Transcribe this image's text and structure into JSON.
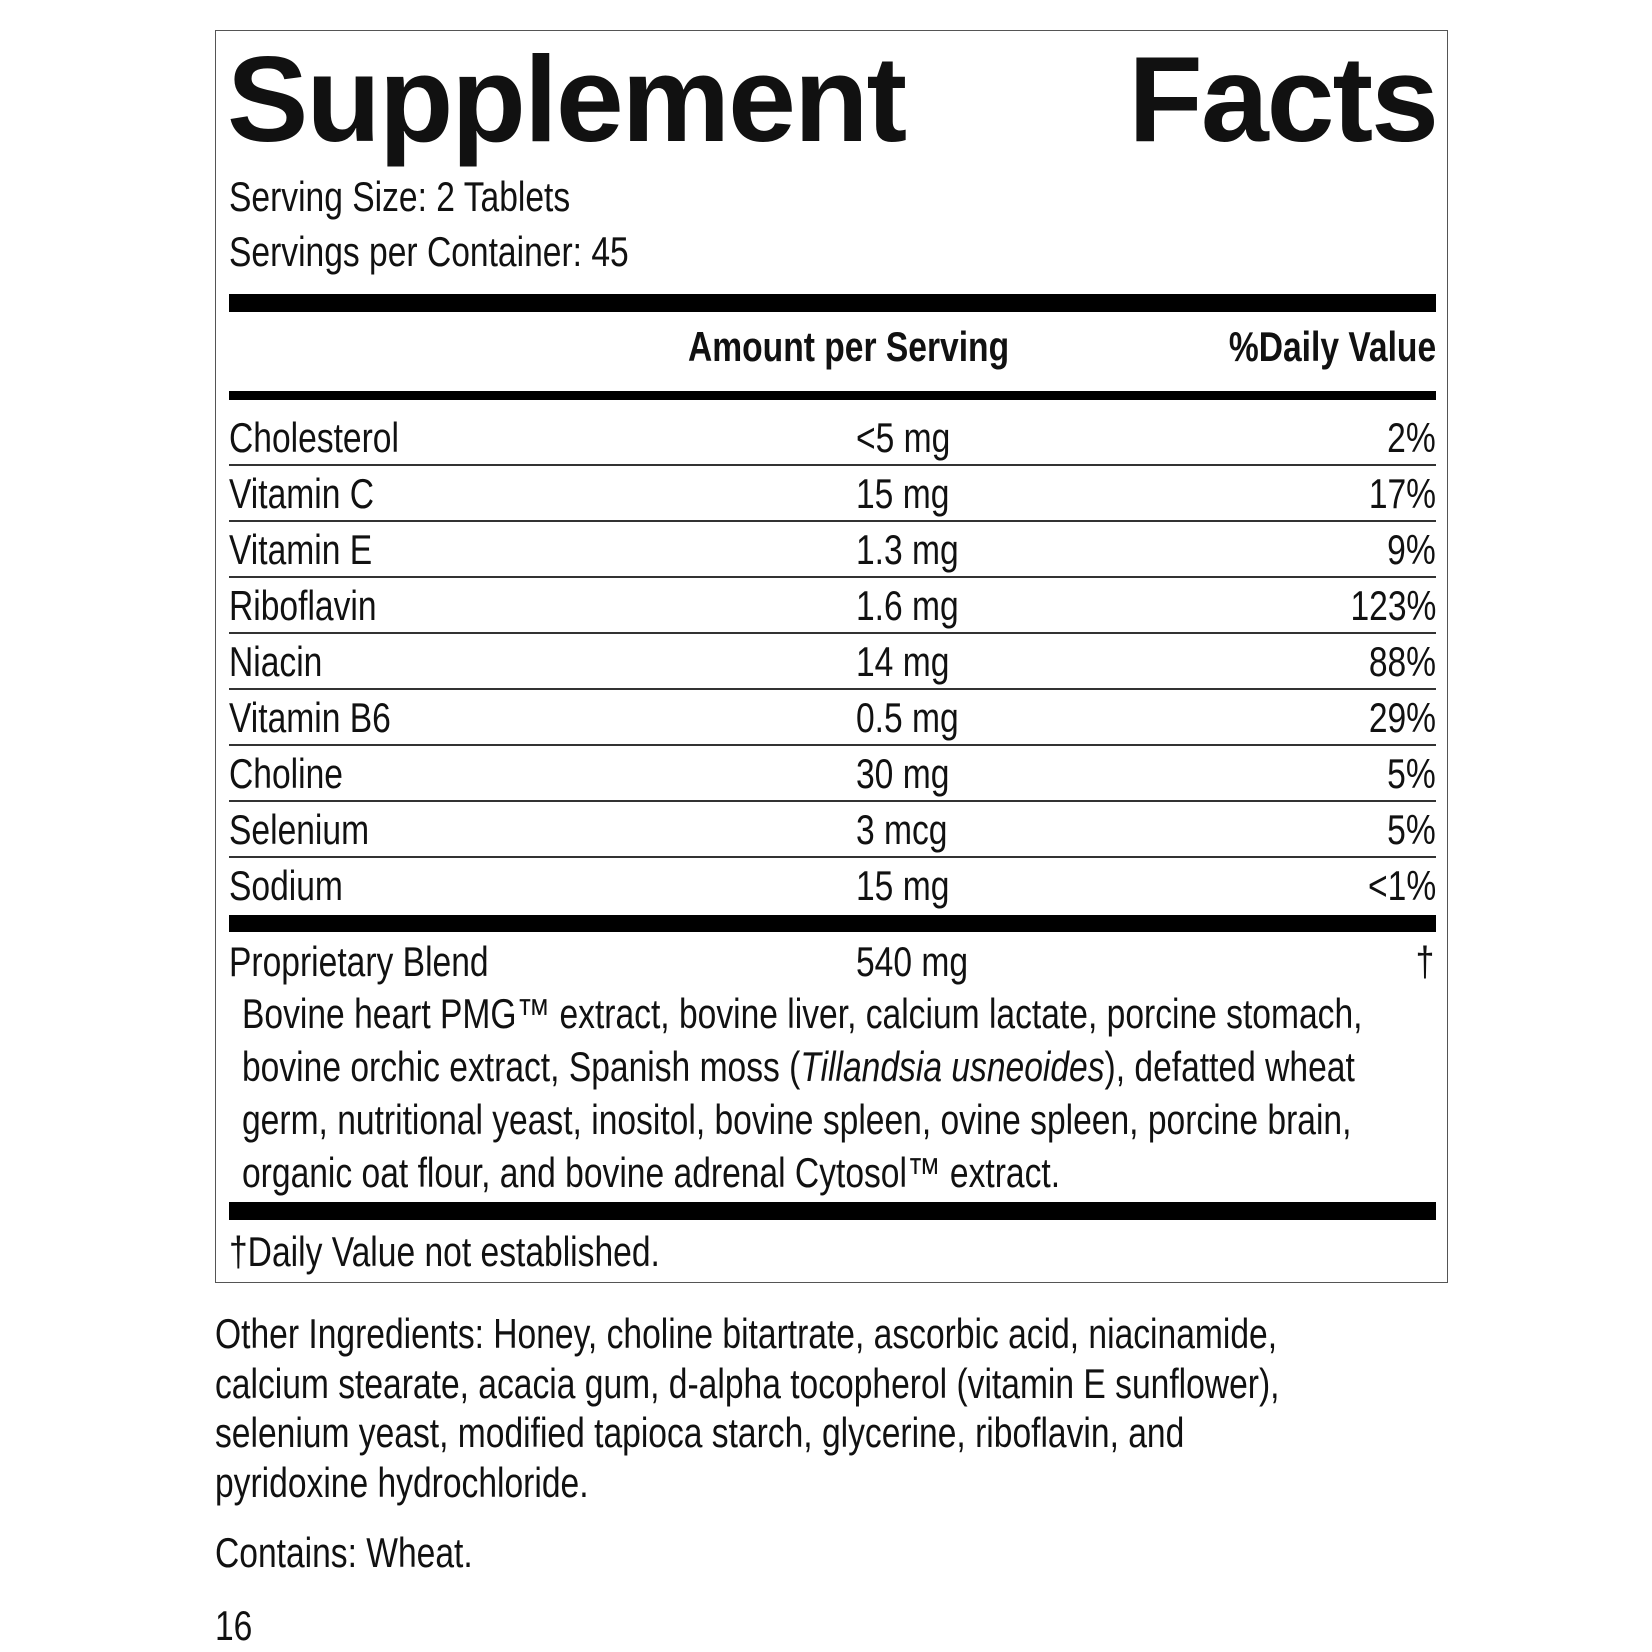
{
  "title": {
    "word1": "Supplement",
    "word2": "Facts"
  },
  "serving_size": "Serving Size: 2 Tablets",
  "servings_per_container": "Servings per Container: 45",
  "header": {
    "amount": "Amount per Serving",
    "dv": "%Daily Value"
  },
  "rows": [
    {
      "name": "Cholesterol",
      "amount": "<5 mg",
      "dv": "2%"
    },
    {
      "name": "Vitamin C",
      "amount": "15 mg",
      "dv": "17%"
    },
    {
      "name": "Vitamin E",
      "amount": "1.3 mg",
      "dv": "9%"
    },
    {
      "name": "Riboflavin",
      "amount": "1.6 mg",
      "dv": "123%"
    },
    {
      "name": "Niacin",
      "amount": "14 mg",
      "dv": "88%"
    },
    {
      "name": "Vitamin B6",
      "amount": "0.5 mg",
      "dv": "29%"
    },
    {
      "name": "Choline",
      "amount": "30 mg",
      "dv": "5%"
    },
    {
      "name": "Selenium",
      "amount": "3 mcg",
      "dv": "5%"
    },
    {
      "name": "Sodium",
      "amount": "15 mg",
      "dv": "<1%"
    }
  ],
  "blend": {
    "name": "Proprietary Blend",
    "amount": "540 mg",
    "dv": "†",
    "lines": [
      "Bovine heart PMG™ extract, bovine liver, calcium lactate, porcine stomach,",
      {
        "before": "bovine orchic extract, Spanish moss (",
        "italic": "Tillandsia usneoides",
        "after": "), defatted wheat"
      },
      "germ, nutritional yeast, inositol, bovine spleen, ovine spleen, porcine brain,",
      "organic oat flour, and bovine adrenal Cytosol™ extract."
    ]
  },
  "footnote": "†Daily Value not established.",
  "other_ingredients": [
    "Other Ingredients: Honey, choline bitartrate, ascorbic acid, niacinamide,",
    "calcium stearate, acacia gum, d-alpha tocopherol (vitamin E sunflower),",
    "selenium yeast, modified tapioca starch, glycerine, riboflavin, and",
    "pyridoxine hydrochloride."
  ],
  "contains": "Contains: Wheat.",
  "page_number": "16"
}
